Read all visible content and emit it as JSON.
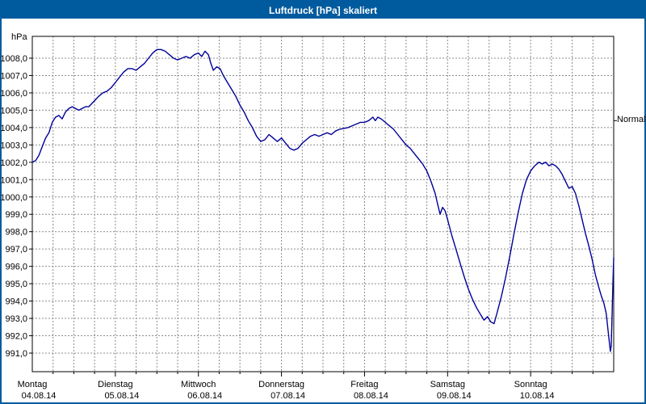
{
  "window": {
    "title": "Luftdruck [hPa] skaliert"
  },
  "chart_data": {
    "type": "line",
    "title": "Luftdruck [hPa] skaliert",
    "unit_label": "hPa",
    "xlabel": "",
    "ylabel": "hPa",
    "grid": "dashed",
    "legend_position": "none",
    "line_color": "#000099",
    "grid_color": "#8c8c8c",
    "ylim": [
      989.9,
      1009.3
    ],
    "ytick_min": 991.0,
    "ytick_max": 1008.0,
    "ytick_step": 1.0,
    "ytick_labels": [
      "1008,0",
      "1007,0",
      "1006,0",
      "1005,0",
      "1004,0",
      "1003,0",
      "1002,0",
      "1001,0",
      "1000,0",
      "999,0",
      "998,0",
      "997,0",
      "996,0",
      "995,0",
      "994,0",
      "993,0",
      "992,0",
      "991,0"
    ],
    "x_minor_divisions_per_day": 4,
    "x_days": [
      {
        "name": "Montag",
        "date": "04.08.14"
      },
      {
        "name": "Dienstag",
        "date": "05.08.14"
      },
      {
        "name": "Mittwoch",
        "date": "06.08.14"
      },
      {
        "name": "Donnerstag",
        "date": "07.08.14"
      },
      {
        "name": "Freitag",
        "date": "08.08.14"
      },
      {
        "name": "Samstag",
        "date": "09.08.14"
      },
      {
        "name": "Sonntag",
        "date": "10.08.14"
      }
    ],
    "normal_marker": {
      "label": "Normal",
      "value": 1004.4
    },
    "series": [
      {
        "name": "Luftdruck",
        "points": [
          [
            0.0,
            1002.0
          ],
          [
            0.04,
            1002.1
          ],
          [
            0.08,
            1002.4
          ],
          [
            0.12,
            1002.9
          ],
          [
            0.16,
            1003.4
          ],
          [
            0.2,
            1003.7
          ],
          [
            0.24,
            1004.3
          ],
          [
            0.28,
            1004.6
          ],
          [
            0.32,
            1004.7
          ],
          [
            0.36,
            1004.5
          ],
          [
            0.4,
            1004.9
          ],
          [
            0.44,
            1005.1
          ],
          [
            0.48,
            1005.2
          ],
          [
            0.52,
            1005.1
          ],
          [
            0.56,
            1005.0
          ],
          [
            0.6,
            1005.1
          ],
          [
            0.64,
            1005.2
          ],
          [
            0.68,
            1005.2
          ],
          [
            0.72,
            1005.4
          ],
          [
            0.76,
            1005.6
          ],
          [
            0.8,
            1005.8
          ],
          [
            0.85,
            1006.0
          ],
          [
            0.9,
            1006.1
          ],
          [
            0.95,
            1006.3
          ],
          [
            1.0,
            1006.6
          ],
          [
            1.05,
            1006.9
          ],
          [
            1.1,
            1007.2
          ],
          [
            1.15,
            1007.4
          ],
          [
            1.2,
            1007.4
          ],
          [
            1.25,
            1007.3
          ],
          [
            1.3,
            1007.5
          ],
          [
            1.35,
            1007.7
          ],
          [
            1.4,
            1008.0
          ],
          [
            1.45,
            1008.3
          ],
          [
            1.5,
            1008.5
          ],
          [
            1.55,
            1008.5
          ],
          [
            1.6,
            1008.4
          ],
          [
            1.65,
            1008.2
          ],
          [
            1.7,
            1008.0
          ],
          [
            1.75,
            1007.9
          ],
          [
            1.8,
            1008.0
          ],
          [
            1.85,
            1008.1
          ],
          [
            1.9,
            1008.0
          ],
          [
            1.95,
            1008.2
          ],
          [
            2.0,
            1008.3
          ],
          [
            2.04,
            1008.1
          ],
          [
            2.08,
            1008.4
          ],
          [
            2.12,
            1008.2
          ],
          [
            2.15,
            1007.7
          ],
          [
            2.18,
            1007.3
          ],
          [
            2.22,
            1007.5
          ],
          [
            2.26,
            1007.4
          ],
          [
            2.3,
            1007.0
          ],
          [
            2.35,
            1006.6
          ],
          [
            2.4,
            1006.2
          ],
          [
            2.45,
            1005.8
          ],
          [
            2.5,
            1005.3
          ],
          [
            2.55,
            1004.9
          ],
          [
            2.6,
            1004.4
          ],
          [
            2.65,
            1004.0
          ],
          [
            2.7,
            1003.5
          ],
          [
            2.75,
            1003.2
          ],
          [
            2.8,
            1003.3
          ],
          [
            2.85,
            1003.6
          ],
          [
            2.9,
            1003.4
          ],
          [
            2.95,
            1003.2
          ],
          [
            3.0,
            1003.4
          ],
          [
            3.05,
            1003.1
          ],
          [
            3.1,
            1002.8
          ],
          [
            3.15,
            1002.7
          ],
          [
            3.2,
            1002.8
          ],
          [
            3.25,
            1003.1
          ],
          [
            3.3,
            1003.3
          ],
          [
            3.35,
            1003.5
          ],
          [
            3.4,
            1003.6
          ],
          [
            3.45,
            1003.5
          ],
          [
            3.5,
            1003.6
          ],
          [
            3.55,
            1003.7
          ],
          [
            3.6,
            1003.6
          ],
          [
            3.65,
            1003.8
          ],
          [
            3.7,
            1003.9
          ],
          [
            3.8,
            1004.0
          ],
          [
            3.9,
            1004.2
          ],
          [
            3.95,
            1004.3
          ],
          [
            4.0,
            1004.3
          ],
          [
            4.05,
            1004.4
          ],
          [
            4.1,
            1004.6
          ],
          [
            4.13,
            1004.4
          ],
          [
            4.16,
            1004.6
          ],
          [
            4.2,
            1004.5
          ],
          [
            4.25,
            1004.3
          ],
          [
            4.3,
            1004.1
          ],
          [
            4.35,
            1003.9
          ],
          [
            4.4,
            1003.6
          ],
          [
            4.45,
            1003.3
          ],
          [
            4.5,
            1003.0
          ],
          [
            4.55,
            1002.8
          ],
          [
            4.6,
            1002.5
          ],
          [
            4.65,
            1002.2
          ],
          [
            4.7,
            1001.9
          ],
          [
            4.75,
            1001.5
          ],
          [
            4.8,
            1000.9
          ],
          [
            4.85,
            1000.2
          ],
          [
            4.88,
            999.6
          ],
          [
            4.91,
            999.0
          ],
          [
            4.94,
            999.4
          ],
          [
            4.97,
            999.2
          ],
          [
            5.0,
            998.7
          ],
          [
            5.05,
            997.8
          ],
          [
            5.1,
            997.0
          ],
          [
            5.15,
            996.2
          ],
          [
            5.2,
            995.4
          ],
          [
            5.25,
            994.7
          ],
          [
            5.3,
            994.1
          ],
          [
            5.35,
            993.6
          ],
          [
            5.4,
            993.2
          ],
          [
            5.44,
            992.9
          ],
          [
            5.48,
            993.1
          ],
          [
            5.52,
            992.8
          ],
          [
            5.56,
            992.7
          ],
          [
            5.6,
            993.4
          ],
          [
            5.65,
            994.3
          ],
          [
            5.7,
            995.4
          ],
          [
            5.75,
            996.6
          ],
          [
            5.8,
            997.9
          ],
          [
            5.85,
            999.1
          ],
          [
            5.9,
            1000.2
          ],
          [
            5.95,
            1001.0
          ],
          [
            6.0,
            1001.5
          ],
          [
            6.05,
            1001.8
          ],
          [
            6.1,
            1002.0
          ],
          [
            6.14,
            1001.9
          ],
          [
            6.18,
            1002.0
          ],
          [
            6.22,
            1001.8
          ],
          [
            6.26,
            1001.9
          ],
          [
            6.3,
            1001.8
          ],
          [
            6.34,
            1001.6
          ],
          [
            6.38,
            1001.3
          ],
          [
            6.42,
            1000.9
          ],
          [
            6.46,
            1000.5
          ],
          [
            6.5,
            1000.6
          ],
          [
            6.54,
            1000.2
          ],
          [
            6.58,
            999.5
          ],
          [
            6.62,
            998.7
          ],
          [
            6.66,
            997.9
          ],
          [
            6.7,
            997.2
          ],
          [
            6.74,
            996.4
          ],
          [
            6.78,
            995.5
          ],
          [
            6.82,
            994.8
          ],
          [
            6.85,
            994.3
          ],
          [
            6.88,
            993.9
          ],
          [
            6.91,
            993.3
          ],
          [
            6.93,
            992.4
          ],
          [
            6.95,
            991.5
          ],
          [
            6.96,
            991.1
          ],
          [
            6.97,
            991.4
          ],
          [
            6.98,
            993.0
          ],
          [
            6.99,
            995.0
          ],
          [
            7.0,
            996.5
          ]
        ]
      }
    ]
  }
}
